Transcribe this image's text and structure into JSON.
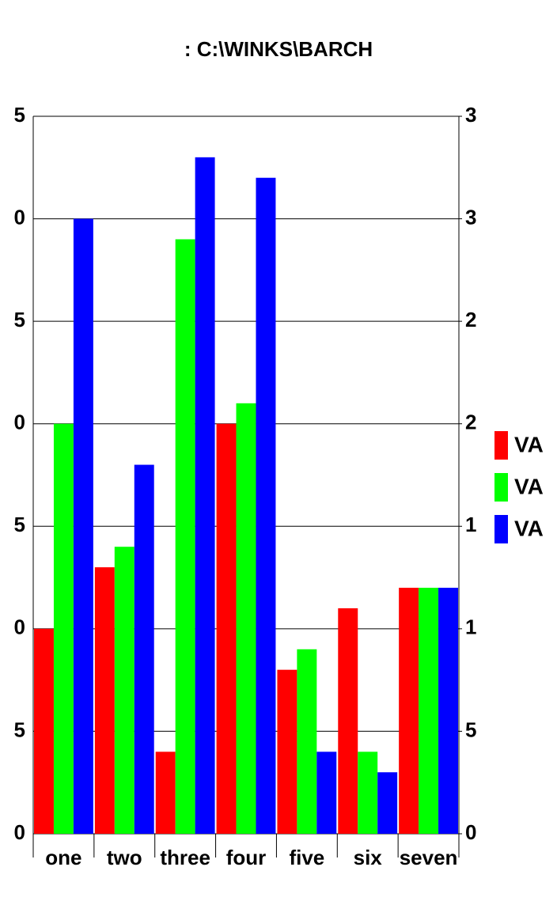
{
  "chart_data": {
    "type": "bar",
    "title": ": C:\\WINKS\\BARCH",
    "categories": [
      "one",
      "two",
      "three",
      "four",
      "five",
      "six",
      "seven"
    ],
    "series": [
      {
        "name": "VA",
        "color": "#ff0000",
        "values": [
          10,
          13,
          4,
          20,
          8,
          11,
          12
        ]
      },
      {
        "name": "VA",
        "color": "#00ff00",
        "values": [
          20,
          14,
          29,
          21,
          9,
          4,
          12
        ]
      },
      {
        "name": "VA",
        "color": "#0000ff",
        "values": [
          30,
          18,
          33,
          32,
          4,
          3,
          12
        ]
      }
    ],
    "ylim": [
      0,
      35
    ],
    "yticks": [
      0,
      5,
      {
        "value": 10,
        "label": "0"
      },
      {
        "value": 15,
        "label": "5"
      },
      {
        "value": 20,
        "label": "0"
      },
      {
        "value": 25,
        "label": "5"
      },
      {
        "value": 30,
        "label": "0"
      },
      {
        "value": 35,
        "label": "5"
      }
    ],
    "y2lim": [
      0,
      35
    ],
    "y2ticks": [
      0,
      5,
      {
        "value": 10,
        "label": "1"
      },
      {
        "value": 15,
        "label": "1"
      },
      {
        "value": 20,
        "label": "2"
      },
      {
        "value": 25,
        "label": "2"
      },
      {
        "value": 30,
        "label": "3"
      },
      {
        "value": 35,
        "label": "3"
      }
    ],
    "grid": true,
    "legend": "right"
  }
}
